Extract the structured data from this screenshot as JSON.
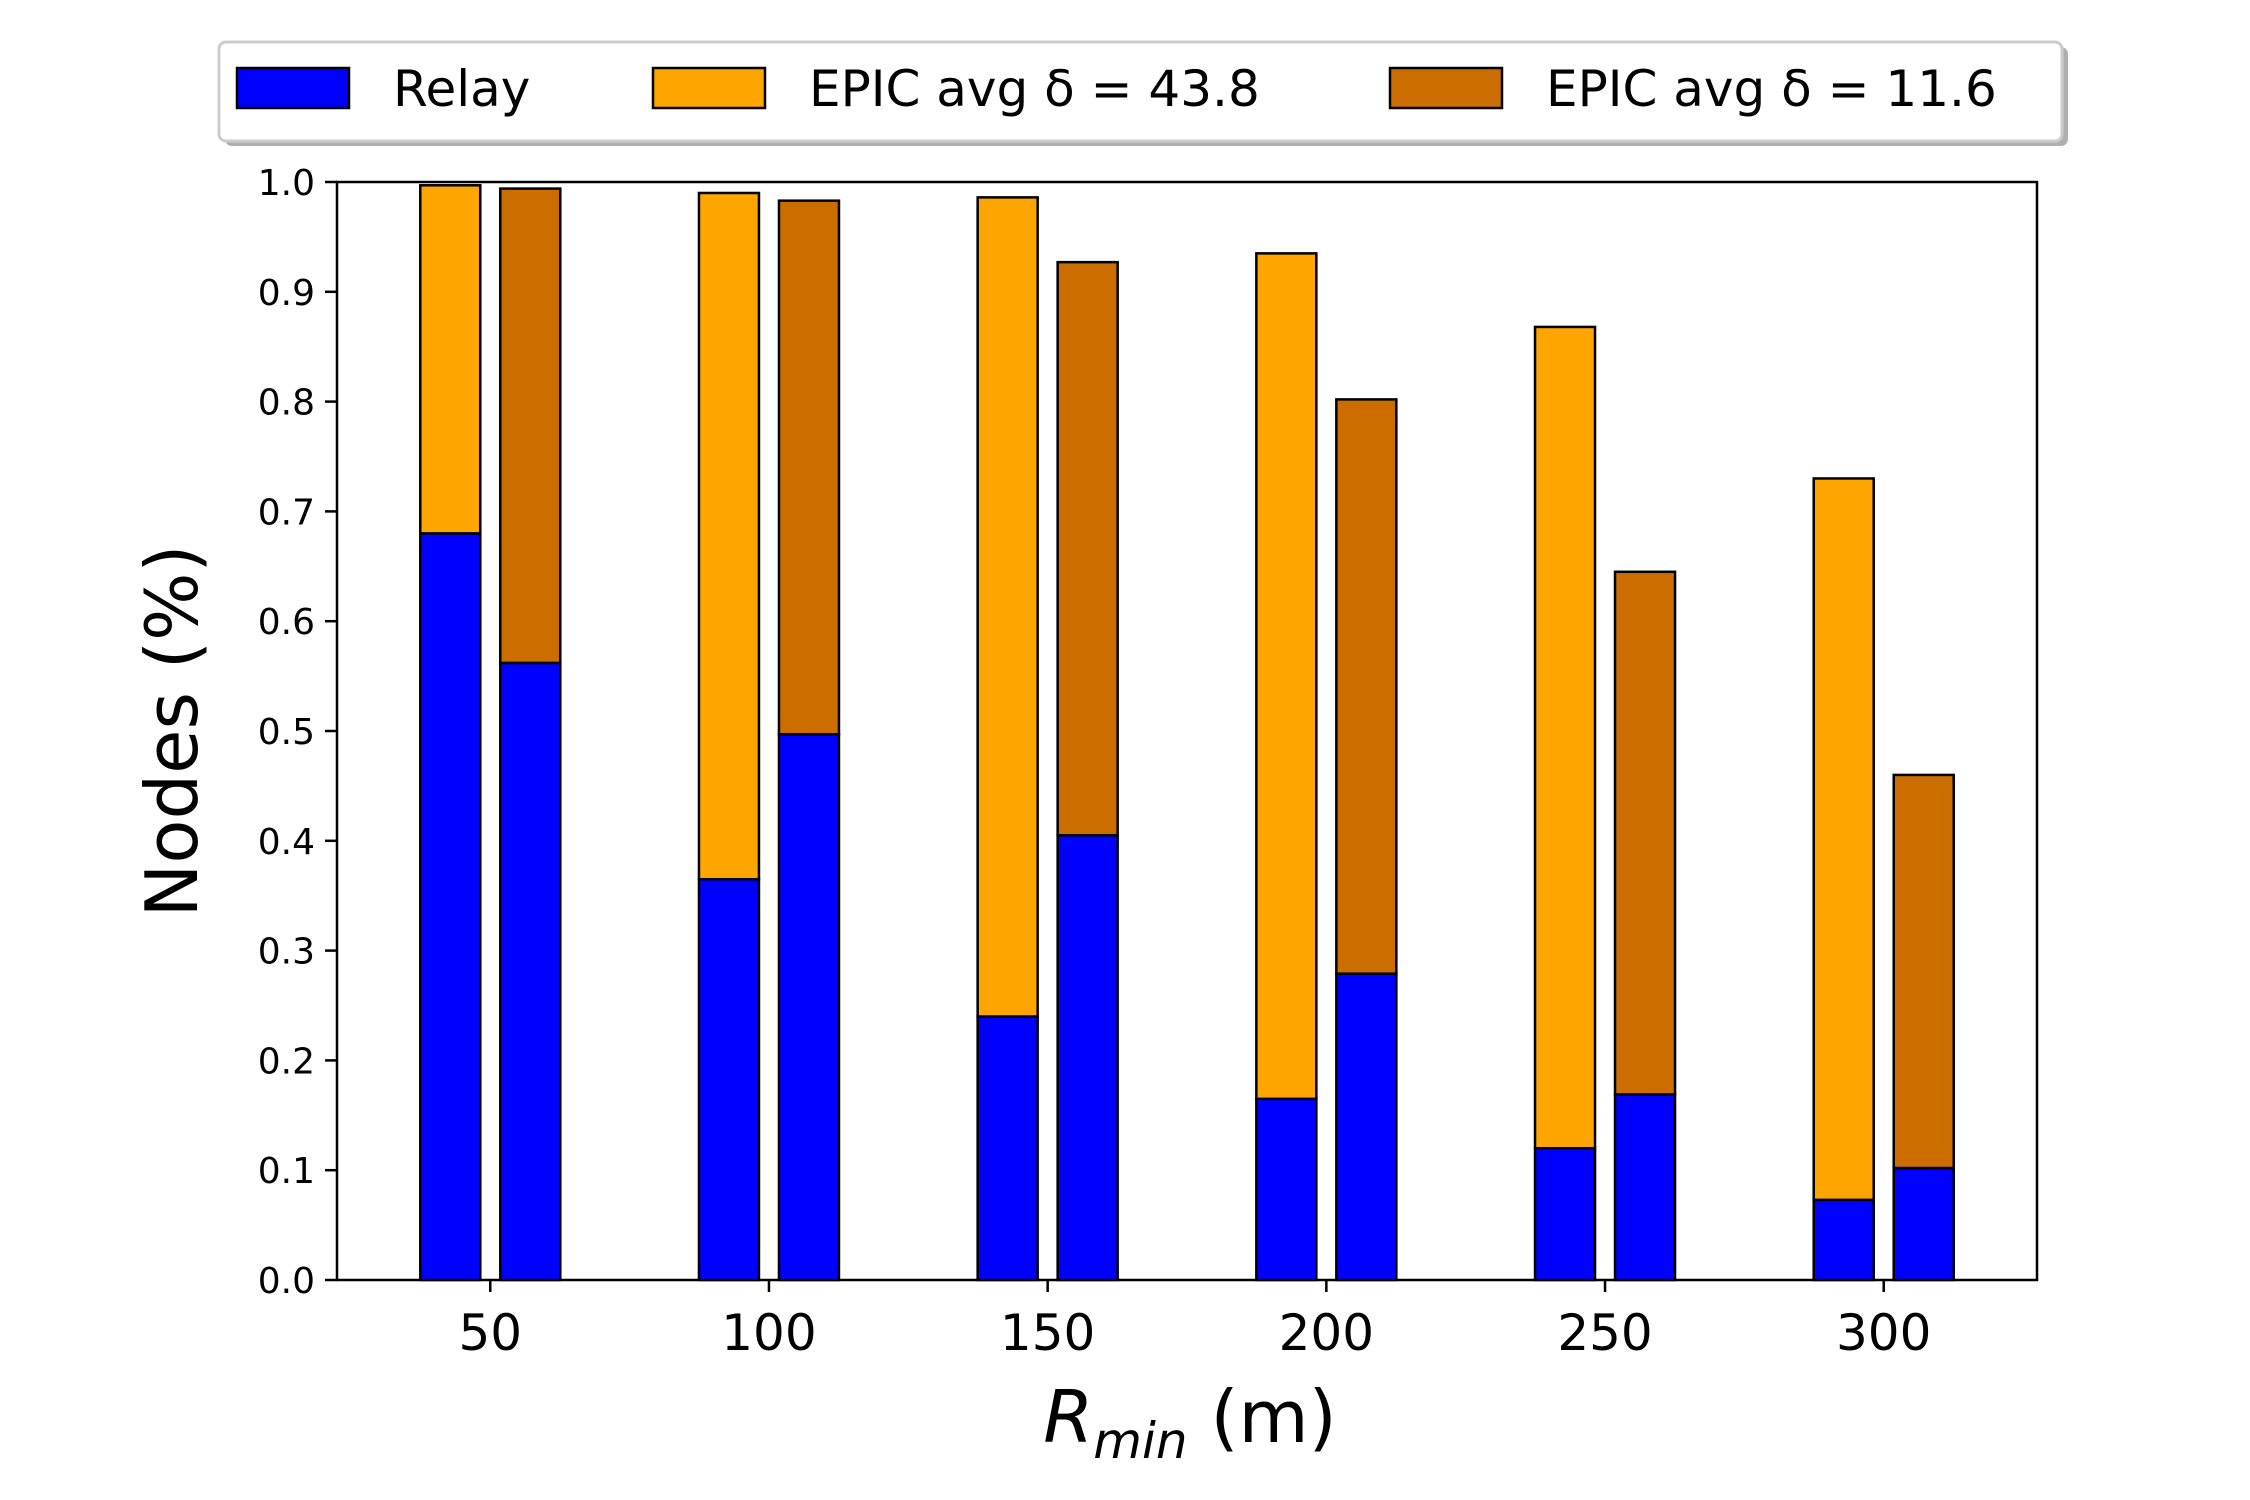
{
  "chart_data": {
    "type": "bar",
    "stacked": true,
    "categories": [
      "50",
      "100",
      "150",
      "200",
      "250",
      "300"
    ],
    "x_values": [
      50,
      100,
      150,
      200,
      250,
      300
    ],
    "ylabel": "Nodes (%)",
    "xlabel_main": "R",
    "xlabel_sub": "min",
    "xlabel_unit": " (m)",
    "ylim": [
      0,
      1.0
    ],
    "yticks": [
      "0.0",
      "0.1",
      "0.2",
      "0.3",
      "0.4",
      "0.5",
      "0.6",
      "0.7",
      "0.8",
      "0.9",
      "1.0"
    ],
    "grid": false,
    "legend_position": "top",
    "relay_color": "#0000ff",
    "groups": [
      {
        "name": "EPIC avg δ = 43.8",
        "color": "#ffa500",
        "relay": [
          0.68,
          0.365,
          0.24,
          0.165,
          0.12,
          0.073
        ],
        "total": [
          0.997,
          0.99,
          0.986,
          0.935,
          0.868,
          0.73
        ]
      },
      {
        "name": "EPIC avg δ = 11.6",
        "color": "#cc6d00",
        "relay": [
          0.562,
          0.497,
          0.405,
          0.279,
          0.169,
          0.102
        ],
        "total": [
          0.994,
          0.983,
          0.927,
          0.802,
          0.645,
          0.46
        ]
      }
    ],
    "legend": [
      {
        "label": "Relay",
        "color": "#0000ff"
      },
      {
        "label": "EPIC avg δ = 43.8",
        "color": "#ffa500"
      },
      {
        "label": "EPIC avg δ = 11.6",
        "color": "#cc6d00"
      }
    ]
  }
}
